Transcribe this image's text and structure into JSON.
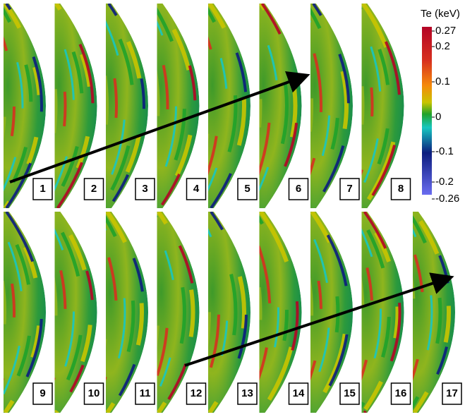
{
  "colorbar": {
    "title": "Te (keV)",
    "ticks": [
      "0.27",
      "0.2",
      "0.1",
      "0",
      "-0.1",
      "-0.2",
      "-0.26"
    ]
  },
  "panels": [
    {
      "label": "1"
    },
    {
      "label": "2"
    },
    {
      "label": "3"
    },
    {
      "label": "4"
    },
    {
      "label": "5"
    },
    {
      "label": "6"
    },
    {
      "label": "7"
    },
    {
      "label": "8"
    },
    {
      "label": "9"
    },
    {
      "label": "10"
    },
    {
      "label": "11"
    },
    {
      "label": "12"
    },
    {
      "label": "13"
    },
    {
      "label": "14"
    },
    {
      "label": "15"
    },
    {
      "label": "16"
    },
    {
      "label": "17"
    }
  ]
}
